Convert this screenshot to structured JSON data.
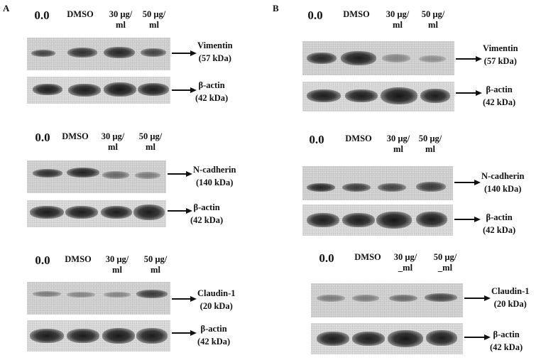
{
  "panel_a": {
    "letter": "A",
    "group1": {
      "lanes": [
        "0.0",
        "DMSO",
        "30 µg/\nml",
        "50 µg/\nml"
      ],
      "target": {
        "name": "Vimentin",
        "size": "(57 kDa)"
      },
      "control": {
        "name": "β-actin",
        "size": "(42 kDa)"
      }
    },
    "group2": {
      "lanes": [
        "0.0",
        "DMSO",
        "30 µg/\nml",
        "50 µg/\nml"
      ],
      "target": {
        "name": "N-cadherin",
        "size": "(140 kDa)"
      },
      "control": {
        "name": "β-actin",
        "size": "(42 kDa)"
      }
    },
    "group3": {
      "lanes": [
        "0.0",
        "DMSO",
        "30 µg/\nml",
        "50 µg/\nml"
      ],
      "target": {
        "name": "Claudin-1",
        "size": "(20 kDa)"
      },
      "control": {
        "name": "β-actin",
        "size": "(42 kDa)"
      }
    }
  },
  "panel_b": {
    "letter": "B",
    "group1": {
      "lanes": [
        "0.0",
        "DMSO",
        "30 µg/\nml",
        "50 µg/\nml"
      ],
      "target": {
        "name": "Vimentin",
        "size": "(57 kDa)"
      },
      "control": {
        "name": "β-actin",
        "size": "(42 kDa)"
      }
    },
    "group2": {
      "lanes": [
        "0.0",
        "DMSO",
        "30 µg/\nml",
        "50 µg/\nml"
      ],
      "target": {
        "name": "N-cadherin",
        "size": "(140 kDa)"
      },
      "control": {
        "name": "β-actin",
        "size": "(42 kDa)"
      }
    },
    "group3": {
      "lanes": [
        "0.0",
        "DMSO",
        "30 µg/\n_ml",
        "50 µg/\n_ml"
      ],
      "target": {
        "name": "Claudin-1",
        "size": "(20 kDa)"
      },
      "control": {
        "name": "β-actin",
        "size": "(42 kDa)"
      }
    }
  }
}
